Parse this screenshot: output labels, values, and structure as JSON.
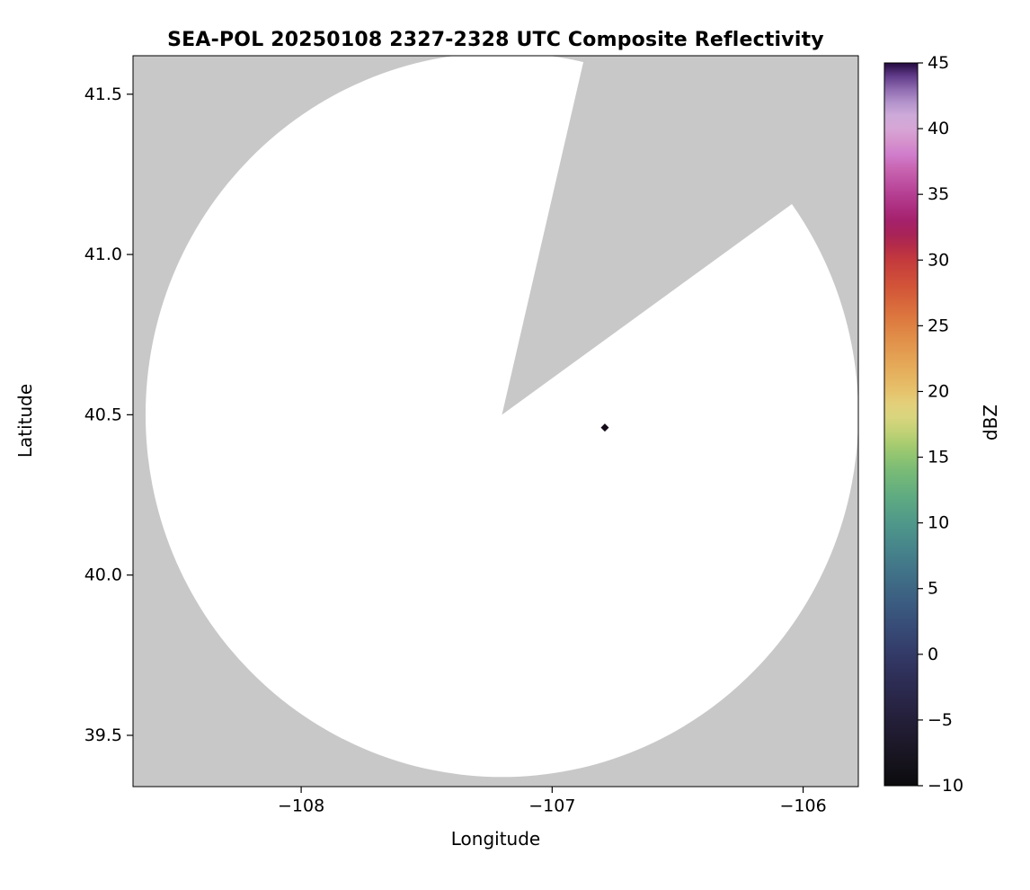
{
  "figure": {
    "background": "#ffffff",
    "outside_color": "#c8c8c8",
    "scan_fill": "#ffffff",
    "axis_color": "#000000"
  },
  "chart_data": {
    "type": "heatmap",
    "subtype": "radar-composite-reflectivity-coverage",
    "title": "SEA-POL 20250108 2327-2328 UTC Composite Reflectivity",
    "xlabel": "Longitude",
    "ylabel": "Latitude",
    "xlim": [
      -108.67,
      -105.78
    ],
    "ylim": [
      39.34,
      41.62
    ],
    "xticks": [
      -108,
      -107,
      -106
    ],
    "xtick_labels": [
      "−108",
      "−107",
      "−106"
    ],
    "yticks": [
      39.5,
      40.0,
      40.5,
      41.0,
      41.5
    ],
    "ytick_labels": [
      "39.5",
      "40.0",
      "40.5",
      "41.0",
      "41.5"
    ],
    "grid": false,
    "legend": "none",
    "radar": {
      "center_lon": -107.2,
      "center_lat": 40.5,
      "range_deg_lon": 1.42,
      "range_deg_lat": 1.13,
      "missing_sector_azimuth_deg": [
        13,
        54
      ]
    },
    "echo_points": [
      {
        "lon": -106.79,
        "lat": 40.46,
        "dbz": 45,
        "color": "#140a18"
      }
    ],
    "colorbar": {
      "label": "dBZ",
      "min": -10,
      "max": 45,
      "tick_step": 5,
      "ticks": [
        -10,
        -5,
        0,
        5,
        10,
        15,
        20,
        25,
        30,
        35,
        40,
        45
      ],
      "tick_labels": [
        "−10",
        "−5",
        "0",
        "5",
        "10",
        "15",
        "20",
        "25",
        "30",
        "35",
        "40",
        "45"
      ],
      "stops": [
        [
          -10,
          "#0b0b0d"
        ],
        [
          -8,
          "#17141f"
        ],
        [
          -6,
          "#201b30"
        ],
        [
          -4,
          "#272342"
        ],
        [
          -2,
          "#2d2d55"
        ],
        [
          0,
          "#333a67"
        ],
        [
          2,
          "#374b76"
        ],
        [
          4,
          "#3b5d80"
        ],
        [
          6,
          "#407087"
        ],
        [
          8,
          "#46848b"
        ],
        [
          10,
          "#4f988a"
        ],
        [
          12,
          "#5fab81"
        ],
        [
          14,
          "#79bb76"
        ],
        [
          15,
          "#8fc471"
        ],
        [
          16,
          "#a8cc70"
        ],
        [
          17,
          "#c3d276"
        ],
        [
          18,
          "#d8d57e"
        ],
        [
          19,
          "#e3d07b"
        ],
        [
          20,
          "#e6c26c"
        ],
        [
          22,
          "#e5a958"
        ],
        [
          24,
          "#e18f49"
        ],
        [
          26,
          "#db723d"
        ],
        [
          28,
          "#d25438"
        ],
        [
          30,
          "#c43a3d"
        ],
        [
          31,
          "#b52c48"
        ],
        [
          32,
          "#a82358"
        ],
        [
          33,
          "#a5216b"
        ],
        [
          34,
          "#ad2f80"
        ],
        [
          35,
          "#b53f92"
        ],
        [
          36,
          "#bf52a3"
        ],
        [
          37,
          "#c966b2"
        ],
        [
          38,
          "#d07ccc"
        ],
        [
          39,
          "#d592cc"
        ],
        [
          40,
          "#d6a6d6"
        ],
        [
          41,
          "#cdaad9"
        ],
        [
          42,
          "#b393cb"
        ],
        [
          43,
          "#8f6bb0"
        ],
        [
          44,
          "#613c8a"
        ],
        [
          45,
          "#230a3e"
        ]
      ]
    }
  }
}
